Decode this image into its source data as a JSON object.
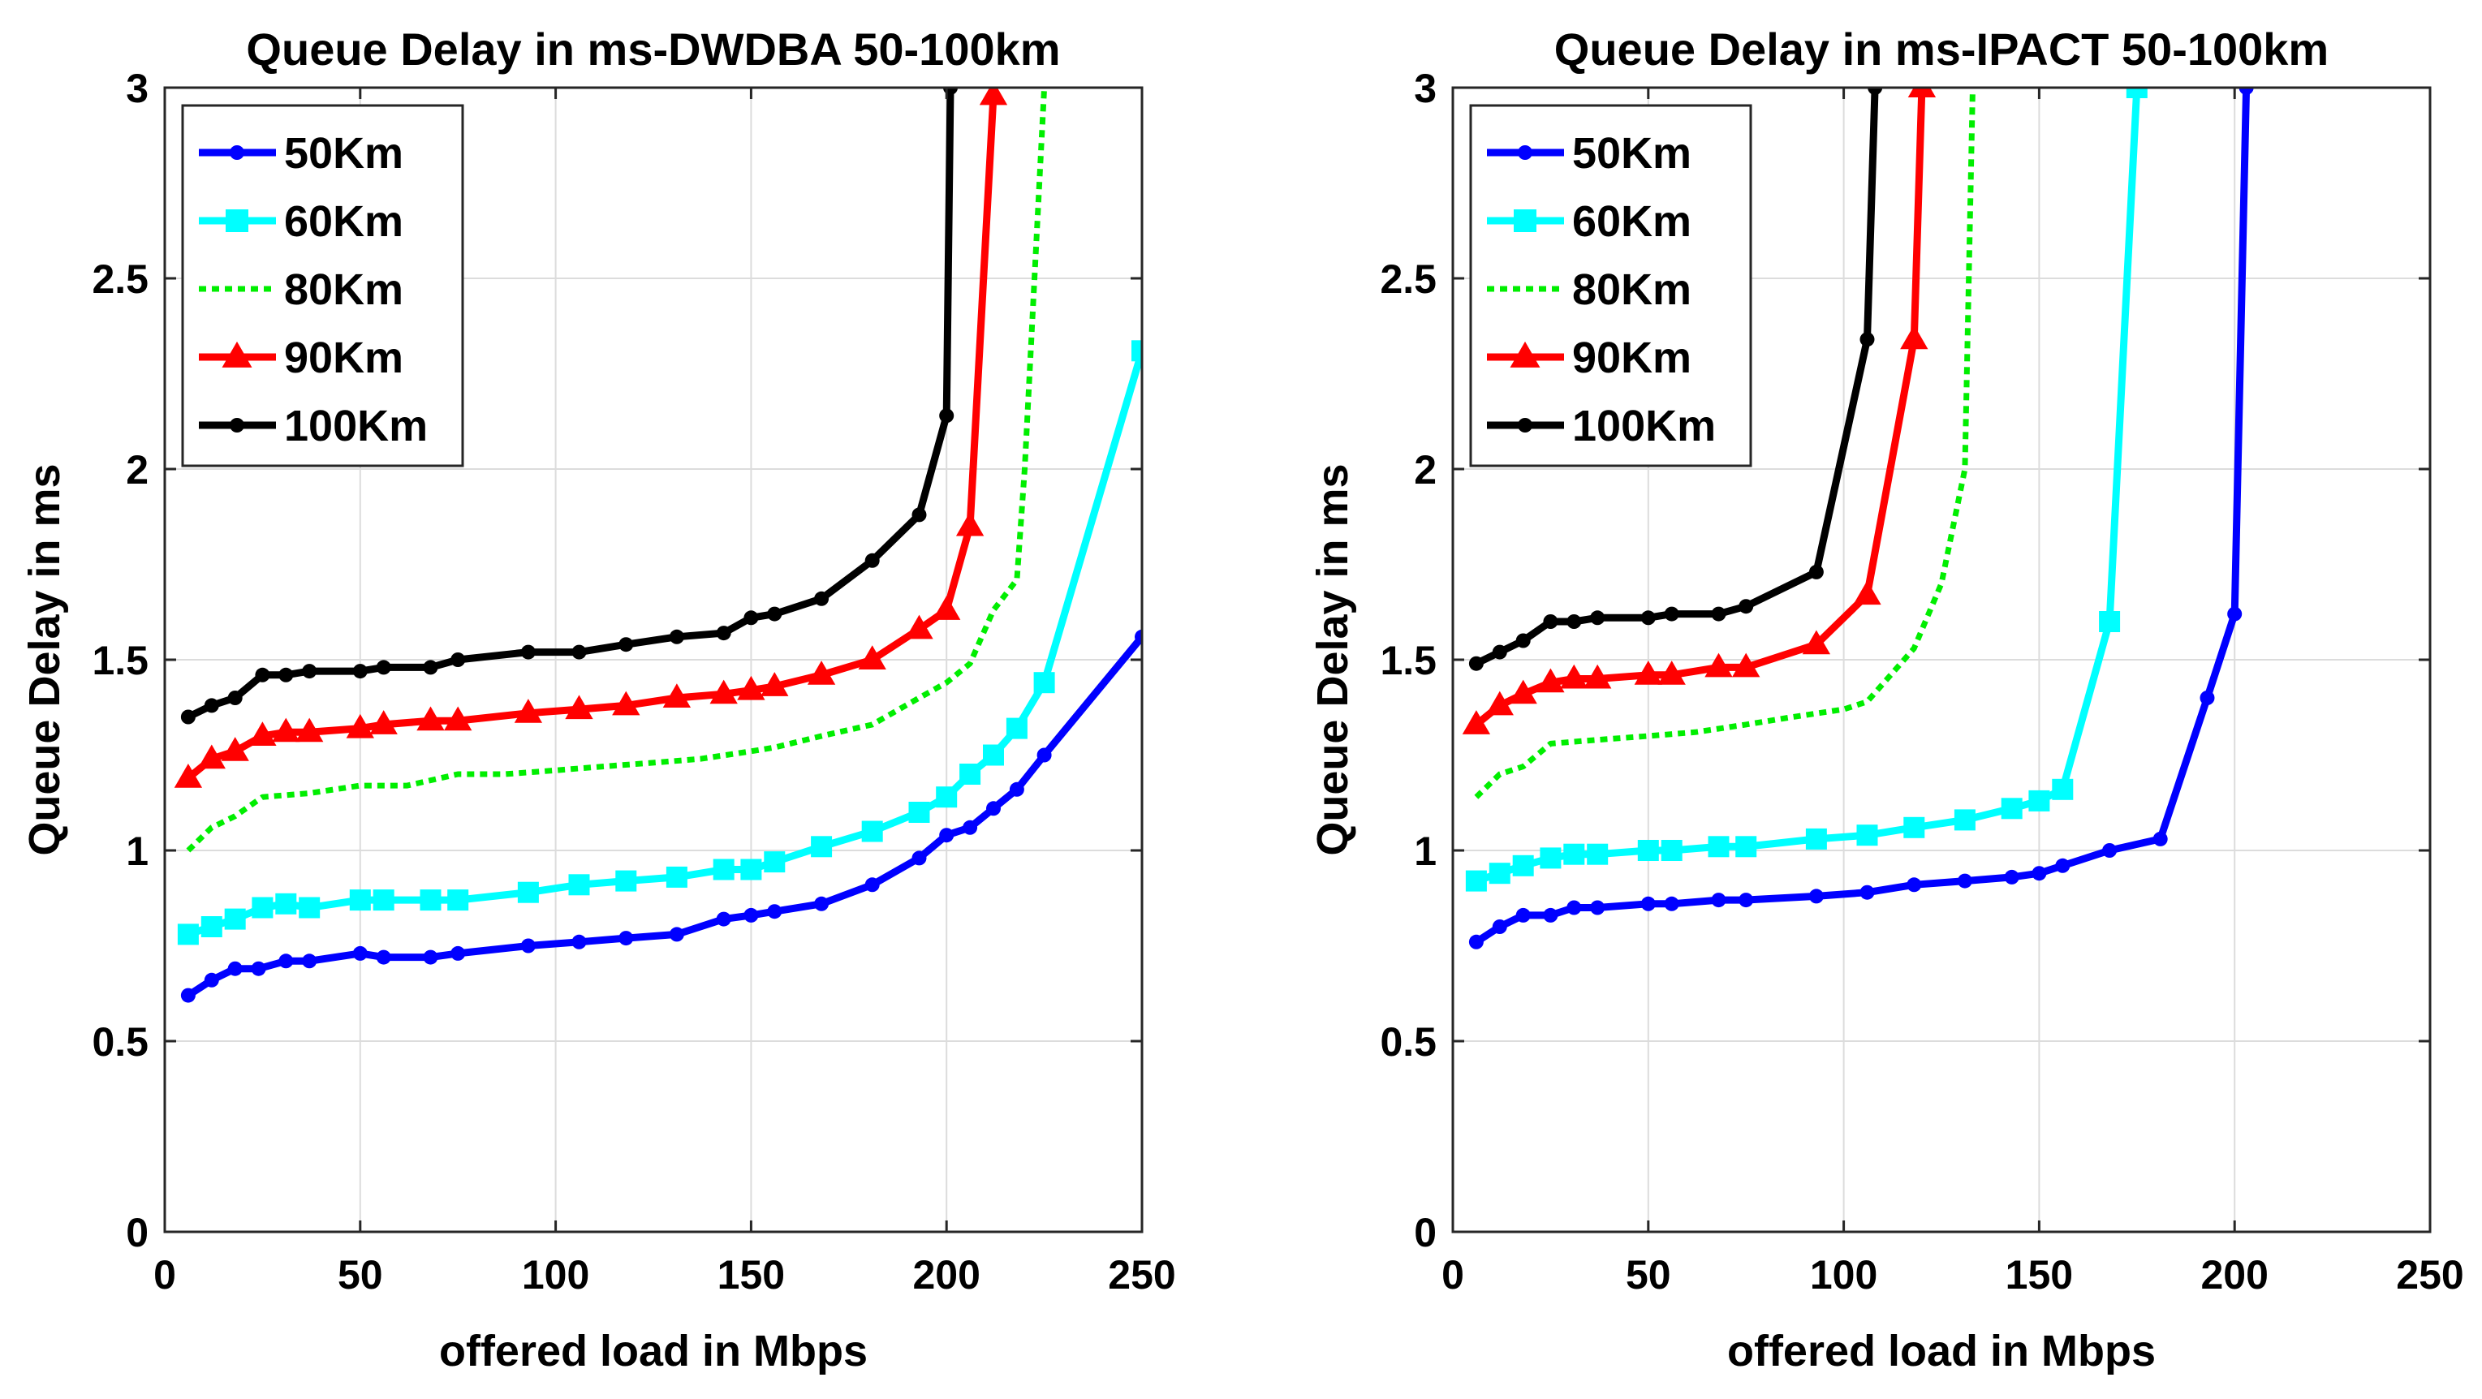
{
  "chart_data": [
    {
      "type": "line",
      "title": "Queue Delay in ms-DWDBA 50-100km",
      "xlabel": "offered load in Mbps",
      "ylabel": "Queue Delay in ms",
      "xlim": [
        0,
        250
      ],
      "ylim": [
        0,
        3
      ],
      "xticks": [
        "0",
        "50",
        "100",
        "150",
        "200",
        "250"
      ],
      "yticks": [
        "0",
        "0.5",
        "1",
        "1.5",
        "2",
        "2.5",
        "3"
      ],
      "grid": true,
      "legend_position": "top-left",
      "series": [
        {
          "name": "50Km",
          "color": "#0000ff",
          "marker": "circle",
          "dashed": false,
          "x": [
            6,
            12,
            18,
            24,
            31,
            37,
            50,
            56,
            68,
            75,
            93,
            106,
            118,
            131,
            143,
            150,
            156,
            168,
            181,
            193,
            200,
            206,
            212,
            218,
            225,
            250
          ],
          "y": [
            0.62,
            0.66,
            0.69,
            0.69,
            0.71,
            0.71,
            0.73,
            0.72,
            0.72,
            0.73,
            0.75,
            0.76,
            0.77,
            0.78,
            0.82,
            0.83,
            0.84,
            0.86,
            0.91,
            0.98,
            1.04,
            1.06,
            1.11,
            1.16,
            1.25,
            1.56
          ]
        },
        {
          "name": "60Km",
          "color": "#00ffff",
          "marker": "square",
          "dashed": false,
          "x": [
            6,
            12,
            18,
            25,
            31,
            37,
            50,
            56,
            68,
            75,
            93,
            106,
            118,
            131,
            143,
            150,
            156,
            168,
            181,
            193,
            200,
            206,
            212,
            218,
            225,
            250
          ],
          "y": [
            0.78,
            0.8,
            0.82,
            0.85,
            0.86,
            0.85,
            0.87,
            0.87,
            0.87,
            0.87,
            0.89,
            0.91,
            0.92,
            0.93,
            0.95,
            0.95,
            0.97,
            1.01,
            1.05,
            1.1,
            1.14,
            1.2,
            1.25,
            1.32,
            1.44,
            2.31
          ]
        },
        {
          "name": "80Km",
          "color": "#00ee00",
          "marker": "none",
          "dashed": true,
          "x": [
            6,
            12,
            18,
            25,
            37,
            50,
            62,
            75,
            87,
            100,
            112,
            125,
            137,
            150,
            156,
            168,
            181,
            193,
            200,
            206,
            212,
            218,
            220,
            225
          ],
          "y": [
            1.0,
            1.06,
            1.09,
            1.14,
            1.15,
            1.17,
            1.17,
            1.2,
            1.2,
            1.21,
            1.22,
            1.23,
            1.24,
            1.26,
            1.27,
            1.3,
            1.33,
            1.4,
            1.44,
            1.49,
            1.63,
            1.71,
            2.0,
            3.0
          ]
        },
        {
          "name": "90Km",
          "color": "#ff0000",
          "marker": "triangle",
          "dashed": false,
          "x": [
            6,
            12,
            18,
            25,
            31,
            37,
            50,
            56,
            68,
            75,
            93,
            106,
            118,
            131,
            143,
            150,
            156,
            168,
            181,
            193,
            200,
            206,
            212
          ],
          "y": [
            1.19,
            1.24,
            1.26,
            1.3,
            1.31,
            1.31,
            1.32,
            1.33,
            1.34,
            1.34,
            1.36,
            1.37,
            1.38,
            1.4,
            1.41,
            1.42,
            1.43,
            1.46,
            1.5,
            1.58,
            1.63,
            1.85,
            2.98
          ]
        },
        {
          "name": "100Km",
          "color": "#000000",
          "marker": "circle",
          "dashed": false,
          "x": [
            6,
            12,
            18,
            25,
            31,
            37,
            50,
            56,
            68,
            75,
            93,
            106,
            118,
            131,
            143,
            150,
            156,
            168,
            181,
            193,
            200,
            201
          ],
          "y": [
            1.35,
            1.38,
            1.4,
            1.46,
            1.46,
            1.47,
            1.47,
            1.48,
            1.48,
            1.5,
            1.52,
            1.52,
            1.54,
            1.56,
            1.57,
            1.61,
            1.62,
            1.66,
            1.76,
            1.88,
            2.14,
            3.0
          ]
        }
      ]
    },
    {
      "type": "line",
      "title": "Queue Delay in ms-IPACT 50-100km",
      "xlabel": "offered load in Mbps",
      "ylabel": "Queue Delay in ms",
      "xlim": [
        0,
        250
      ],
      "ylim": [
        0,
        3
      ],
      "xticks": [
        "0",
        "50",
        "100",
        "150",
        "200",
        "250"
      ],
      "yticks": [
        "0",
        "0.5",
        "1",
        "1.5",
        "2",
        "2.5",
        "3"
      ],
      "grid": true,
      "legend_position": "top-left",
      "series": [
        {
          "name": "50Km",
          "color": "#0000ff",
          "marker": "circle",
          "dashed": false,
          "x": [
            6,
            12,
            18,
            25,
            31,
            37,
            50,
            56,
            68,
            75,
            93,
            106,
            118,
            131,
            143,
            150,
            156,
            168,
            181,
            193,
            200,
            203
          ],
          "y": [
            0.76,
            0.8,
            0.83,
            0.83,
            0.85,
            0.85,
            0.86,
            0.86,
            0.87,
            0.87,
            0.88,
            0.89,
            0.91,
            0.92,
            0.93,
            0.94,
            0.96,
            1.0,
            1.03,
            1.4,
            1.62,
            3.0
          ]
        },
        {
          "name": "60Km",
          "color": "#00ffff",
          "marker": "square",
          "dashed": false,
          "x": [
            6,
            12,
            18,
            25,
            31,
            37,
            50,
            56,
            68,
            75,
            93,
            106,
            118,
            131,
            143,
            150,
            156,
            168,
            175
          ],
          "y": [
            0.92,
            0.94,
            0.96,
            0.98,
            0.99,
            0.99,
            1.0,
            1.0,
            1.01,
            1.01,
            1.03,
            1.04,
            1.06,
            1.08,
            1.11,
            1.13,
            1.16,
            1.6,
            3.0
          ]
        },
        {
          "name": "80Km",
          "color": "#00ee00",
          "marker": "none",
          "dashed": true,
          "x": [
            6,
            12,
            18,
            25,
            37,
            50,
            62,
            75,
            87,
            100,
            106,
            112,
            118,
            125,
            131,
            133
          ],
          "y": [
            1.14,
            1.2,
            1.22,
            1.28,
            1.29,
            1.3,
            1.31,
            1.33,
            1.35,
            1.37,
            1.39,
            1.46,
            1.53,
            1.7,
            2.0,
            3.0
          ]
        },
        {
          "name": "90Km",
          "color": "#ff0000",
          "marker": "triangle",
          "dashed": false,
          "x": [
            6,
            12,
            18,
            25,
            31,
            37,
            50,
            56,
            68,
            75,
            93,
            106,
            118,
            120
          ],
          "y": [
            1.33,
            1.38,
            1.41,
            1.44,
            1.45,
            1.45,
            1.46,
            1.46,
            1.48,
            1.48,
            1.54,
            1.67,
            2.34,
            3.0
          ]
        },
        {
          "name": "100Km",
          "color": "#000000",
          "marker": "circle",
          "dashed": false,
          "x": [
            6,
            12,
            18,
            25,
            31,
            37,
            50,
            56,
            68,
            75,
            93,
            106,
            108
          ],
          "y": [
            1.49,
            1.52,
            1.55,
            1.6,
            1.6,
            1.61,
            1.61,
            1.62,
            1.62,
            1.64,
            1.73,
            2.34,
            3.0
          ]
        }
      ]
    }
  ]
}
